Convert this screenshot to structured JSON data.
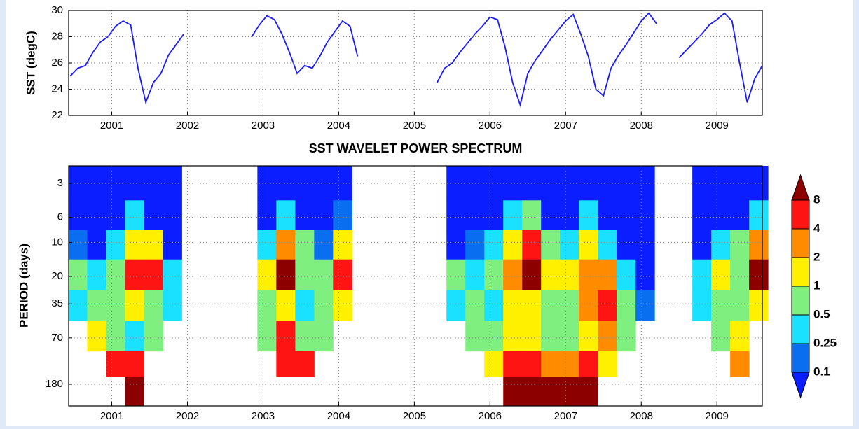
{
  "chart_data": [
    {
      "type": "line",
      "ylabel": "SST (degC)",
      "color": "#1a1aff",
      "grid": true,
      "xlim": [
        2000.43,
        2009.6
      ],
      "xticks": [
        2001,
        2002,
        2003,
        2004,
        2005,
        2006,
        2007,
        2008,
        2009
      ],
      "ylim": [
        22,
        30
      ],
      "yticks": [
        22,
        24,
        26,
        28,
        30
      ],
      "x": [
        2000.45,
        2000.55,
        2000.65,
        2000.75,
        2000.85,
        2000.95,
        2001.05,
        2001.15,
        2001.25,
        2001.35,
        2001.45,
        2001.55,
        2001.65,
        2001.75,
        2001.85,
        2001.95,
        2002.4,
        2002.85,
        2002.95,
        2003.05,
        2003.15,
        2003.25,
        2003.35,
        2003.45,
        2003.55,
        2003.65,
        2003.75,
        2003.85,
        2003.95,
        2004.05,
        2004.15,
        2004.25,
        2004.8,
        2005.3,
        2005.4,
        2005.5,
        2005.6,
        2005.7,
        2005.8,
        2005.9,
        2006.0,
        2006.1,
        2006.2,
        2006.3,
        2006.4,
        2006.5,
        2006.6,
        2006.7,
        2006.8,
        2006.9,
        2007.0,
        2007.1,
        2007.2,
        2007.3,
        2007.4,
        2007.5,
        2007.6,
        2007.7,
        2007.8,
        2007.9,
        2008.0,
        2008.1,
        2008.2,
        2008.35,
        2008.5,
        2008.6,
        2008.7,
        2008.8,
        2008.9,
        2009.0,
        2009.1,
        2009.2,
        2009.3,
        2009.4,
        2009.5,
        2009.6
      ],
      "values": [
        25.0,
        25.6,
        25.8,
        26.8,
        27.6,
        28.0,
        28.8,
        29.2,
        28.9,
        25.5,
        23.0,
        24.5,
        25.2,
        26.6,
        27.4,
        28.2,
        null,
        28.0,
        28.9,
        29.6,
        29.3,
        28.2,
        26.8,
        25.2,
        25.8,
        25.6,
        26.5,
        27.6,
        28.4,
        29.2,
        28.8,
        26.5,
        null,
        24.5,
        25.6,
        26.0,
        26.8,
        27.5,
        28.2,
        28.8,
        29.5,
        29.3,
        27.2,
        24.5,
        22.8,
        25.2,
        26.2,
        27.0,
        27.8,
        28.5,
        29.2,
        29.7,
        28.2,
        26.5,
        24.0,
        23.5,
        25.6,
        26.6,
        27.4,
        28.3,
        29.2,
        29.8,
        29.0,
        null,
        26.4,
        27.0,
        27.6,
        28.2,
        28.9,
        29.3,
        29.8,
        29.2,
        26.0,
        23.0,
        24.8,
        25.8
      ]
    },
    {
      "type": "heatmap",
      "title": "SST WAVELET POWER SPECTRUM",
      "ylabel": "PERIOD (days)",
      "grid": true,
      "xlim": [
        2000.43,
        2009.6
      ],
      "xticks": [
        2001,
        2002,
        2003,
        2004,
        2005,
        2006,
        2007,
        2008,
        2009
      ],
      "yscale": "log",
      "y_inverted": true,
      "ylim": [
        2.1,
        280
      ],
      "yticks": [
        3,
        6,
        10,
        20,
        35,
        70,
        180
      ],
      "x": [
        2000.55,
        2000.8,
        2001.05,
        2001.3,
        2001.55,
        2001.8,
        2002.05,
        2002.3,
        2002.55,
        2002.8,
        2003.05,
        2003.3,
        2003.55,
        2003.8,
        2004.05,
        2004.3,
        2004.55,
        2004.8,
        2005.05,
        2005.3,
        2005.55,
        2005.8,
        2006.05,
        2006.3,
        2006.55,
        2006.8,
        2007.05,
        2007.3,
        2007.55,
        2007.8,
        2008.05,
        2008.3,
        2008.55,
        2008.8,
        2009.05,
        2009.3,
        2009.55
      ],
      "y": [
        3,
        6,
        10,
        20,
        35,
        70,
        120,
        200
      ],
      "z": [
        [
          0.05,
          0.05,
          0.05,
          0.05,
          0.05,
          0.05,
          null,
          null,
          null,
          null,
          0.05,
          0.05,
          0.05,
          0.05,
          0.05,
          null,
          null,
          null,
          null,
          null,
          0.05,
          0.05,
          0.05,
          0.05,
          0.05,
          0.05,
          0.05,
          0.05,
          0.05,
          0.05,
          0.05,
          null,
          null,
          0.05,
          0.05,
          0.05,
          0.05
        ],
        [
          0.05,
          0.05,
          0.05,
          0.3,
          0.05,
          0.05,
          null,
          null,
          null,
          null,
          0.05,
          0.4,
          0.05,
          0.05,
          0.2,
          null,
          null,
          null,
          null,
          null,
          0.05,
          0.05,
          0.05,
          0.3,
          0.5,
          0.05,
          0.05,
          0.3,
          0.05,
          0.05,
          0.05,
          null,
          null,
          0.05,
          0.05,
          0.05,
          0.3
        ],
        [
          0.2,
          0.05,
          0.3,
          1.5,
          1.0,
          0.05,
          null,
          null,
          null,
          null,
          0.3,
          2,
          0.5,
          0.2,
          1.5,
          null,
          null,
          null,
          null,
          null,
          0.05,
          0.2,
          0.3,
          1.2,
          6,
          0.8,
          0.3,
          1.0,
          0.3,
          0.05,
          0.05,
          null,
          null,
          0.05,
          0.3,
          0.5,
          3
        ],
        [
          0.8,
          0.3,
          0.5,
          6,
          5,
          0.3,
          null,
          null,
          null,
          null,
          1.2,
          9,
          0.8,
          0.5,
          5,
          null,
          null,
          null,
          null,
          null,
          0.5,
          0.3,
          0.6,
          2,
          9,
          1.5,
          1,
          3,
          2,
          0.3,
          0.05,
          null,
          null,
          0.3,
          1.2,
          0.5,
          9
        ],
        [
          0.3,
          0.8,
          0.5,
          1.5,
          0.5,
          0.3,
          null,
          null,
          null,
          null,
          0.8,
          1.2,
          0.3,
          0.5,
          1.0,
          null,
          null,
          null,
          null,
          null,
          0.3,
          0.5,
          0.3,
          1.2,
          1.5,
          0.8,
          0.5,
          2,
          4,
          0.5,
          0.2,
          null,
          null,
          0.3,
          0.5,
          0.5,
          1.5
        ],
        [
          null,
          1.2,
          0.5,
          0.3,
          0.5,
          null,
          null,
          null,
          null,
          null,
          0.8,
          5,
          0.5,
          0.8,
          null,
          null,
          null,
          null,
          null,
          null,
          null,
          0.5,
          0.8,
          1.5,
          1.0,
          0.8,
          0.6,
          1.5,
          3,
          0.5,
          null,
          null,
          null,
          null,
          0.5,
          1,
          null
        ],
        [
          null,
          null,
          6,
          5,
          null,
          null,
          null,
          null,
          null,
          null,
          null,
          6,
          5,
          null,
          null,
          null,
          null,
          null,
          null,
          null,
          null,
          null,
          1.2,
          4,
          5,
          3,
          2,
          4,
          1.5,
          null,
          null,
          null,
          null,
          null,
          null,
          3,
          null
        ],
        [
          null,
          null,
          null,
          9,
          null,
          null,
          null,
          null,
          null,
          null,
          null,
          null,
          null,
          null,
          null,
          null,
          null,
          null,
          null,
          null,
          null,
          null,
          null,
          9,
          9,
          9,
          9,
          9,
          null,
          null,
          null,
          null,
          null,
          null,
          null,
          null,
          null
        ]
      ],
      "colorbar": {
        "levels": [
          0.1,
          0.25,
          0.5,
          1,
          2,
          4,
          8
        ],
        "colors": [
          "#0a1eff",
          "#0a6ef0",
          "#19e1ff",
          "#7ff07f",
          "#fff000",
          "#ff8c00",
          "#ff1414",
          "#8c0000"
        ]
      }
    }
  ]
}
